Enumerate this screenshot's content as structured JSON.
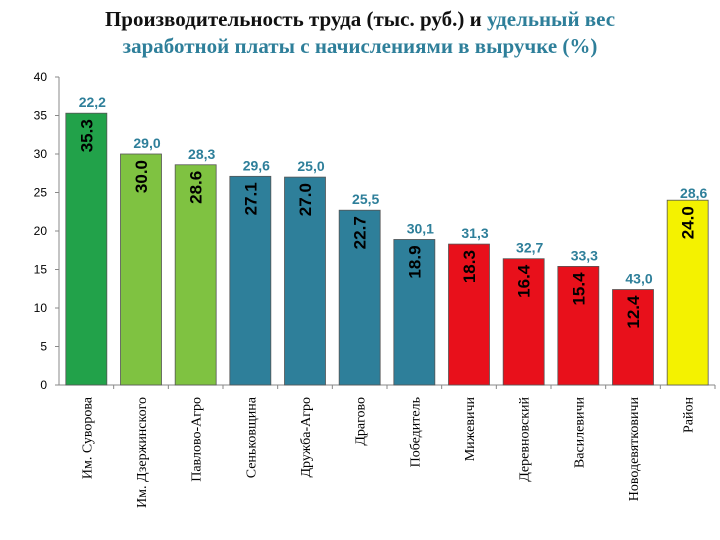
{
  "title": {
    "part1": "Производительность труда (тыс. руб.) и ",
    "part2": "удельный вес",
    "part3": "заработной платы с начислениями в выручке (%)"
  },
  "colors": {
    "title_accent": "#2e7f9a",
    "annotation": "#2e7f9a",
    "annotation_red": "#c0392b"
  },
  "chart_data": {
    "type": "bar",
    "categories": [
      "Им. Суворова",
      "Им. Дзержинского",
      "Павлово-Агро",
      "Сеньковщина",
      "Дружба-Агро",
      "Драгово",
      "Победитель",
      "Мижевичи",
      "Деревновский",
      "Василевичи",
      "Новодевятковичи",
      "Район"
    ],
    "values": [
      35.3,
      30.0,
      28.6,
      27.1,
      27.0,
      22.7,
      18.9,
      18.3,
      16.4,
      15.4,
      12.4,
      24.0
    ],
    "value_labels": [
      "35.3",
      "30.0",
      "28.6",
      "27.1",
      "27.0",
      "22.7",
      "18.9",
      "18.3",
      "16.4",
      "15.4",
      "12.4",
      "24.0"
    ],
    "bar_colors": [
      "#22a24a",
      "#7fc241",
      "#7fc241",
      "#2e7f9a",
      "#2e7f9a",
      "#2e7f9a",
      "#2e7f9a",
      "#e8101b",
      "#e8101b",
      "#e8101b",
      "#e8101b",
      "#f4f200"
    ],
    "annotations": [
      "22,2",
      "29,0",
      "28,3",
      "29,6",
      "25,0",
      "25,5",
      "30,1",
      "31,3",
      "32,7",
      "33,3",
      "43,0",
      "28,6"
    ],
    "annotation_colors": [
      "#2e7f9a",
      "#2e7f9a",
      "#2e7f9a",
      "#2e7f9a",
      "#2e7f9a",
      "#2e7f9a",
      "#2e7f9a",
      "#2e7f9a",
      "#2e7f9a",
      "#2e7f9a",
      "#2e7f9a",
      "#2e7f9a"
    ],
    "ylim": [
      0,
      40
    ],
    "yticks": [
      0,
      5,
      10,
      15,
      20,
      25,
      30,
      35,
      40
    ],
    "grid": false,
    "legend": "none"
  }
}
